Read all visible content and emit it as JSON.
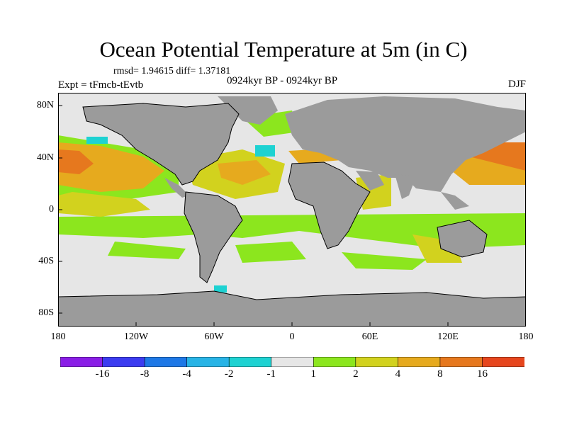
{
  "header": {
    "title": "Ocean Potential Temperature at 5m (in C)",
    "stats": "rmsd= 1.94615 diff= 1.37181",
    "experiment": "Expt = tFmcb-tEvtb",
    "period": "0924kyr BP - 0924kyr BP",
    "season": "DJF"
  },
  "axes": {
    "y_ticks": [
      "80N",
      "40N",
      "0",
      "40S",
      "80S"
    ],
    "x_ticks": [
      "180",
      "120W",
      "60W",
      "0",
      "60E",
      "120E",
      "180"
    ]
  },
  "colorbar": {
    "colors": [
      "#8a1ee6",
      "#3c3cf0",
      "#1e78e6",
      "#28b4e6",
      "#1ed2d2",
      "#e6e6e6",
      "#8ce61e",
      "#d2d21e",
      "#e6aa1e",
      "#e6781e",
      "#e6461e"
    ],
    "labels": [
      "-16",
      "-8",
      "-4",
      "-2",
      "-1",
      "1",
      "2",
      "4",
      "8",
      "16"
    ]
  },
  "map_colors": {
    "land": "#9b9b9b",
    "ocean_neutral": "#e6e6e6",
    "green": "#8ce61e",
    "yellow": "#d2d21e",
    "orange": "#e6aa1e",
    "dark_orange": "#e6781e",
    "cyan": "#1ed2d2"
  }
}
